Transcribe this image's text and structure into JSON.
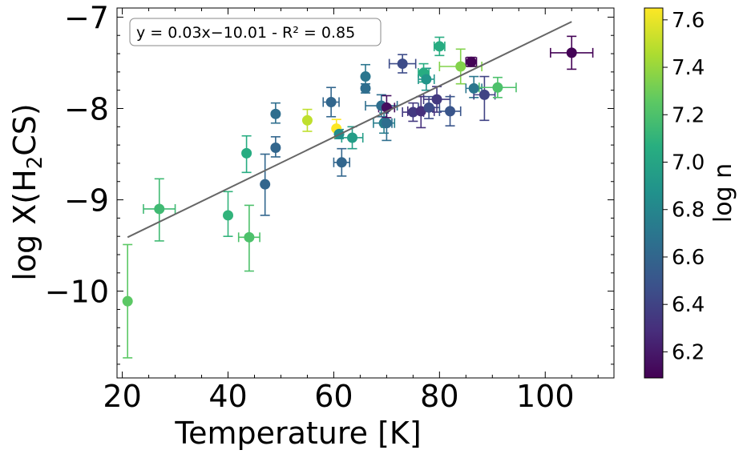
{
  "chart_data": {
    "type": "scatter",
    "xlabel": "Temperature [K]",
    "ylabel_main": "log X(H",
    "ylabel_sub": "2",
    "ylabel_tail": "CS)",
    "xlim": [
      19,
      113
    ],
    "ylim": [
      -10.95,
      -6.9
    ],
    "xticks": [
      20,
      40,
      60,
      80,
      100
    ],
    "xtick_labels": [
      "20",
      "40",
      "60",
      "80",
      "100"
    ],
    "yticks": [
      -7,
      -8,
      -9,
      -10
    ],
    "ytick_labels": [
      "−7",
      "−8",
      "−9",
      "−10"
    ],
    "fit": {
      "label": "y = 0.03x−10.01 - R² = 0.85",
      "x_range": [
        21,
        105
      ],
      "y_range": [
        -9.41,
        -7.05
      ],
      "color": "#666666"
    },
    "colorbar": {
      "label": "log n",
      "range": [
        6.09,
        7.65
      ],
      "ticks": [
        6.2,
        6.4,
        6.6,
        6.8,
        7.0,
        7.2,
        7.4,
        7.6
      ],
      "tick_labels": [
        "6.2",
        "6.4",
        "6.6",
        "6.8",
        "7.0",
        "7.2",
        "7.4",
        "7.6"
      ]
    },
    "points": [
      {
        "x": 21,
        "y": -10.11,
        "xerr": 0,
        "yerr_lo": 0.62,
        "yerr_hi": 0.62,
        "c": 7.25
      },
      {
        "x": 27,
        "y": -9.1,
        "xerr": 3,
        "yerr_lo": 0.35,
        "yerr_hi": 0.33,
        "c": 7.15
      },
      {
        "x": 40,
        "y": -9.17,
        "xerr": 0,
        "yerr_lo": 0.23,
        "yerr_hi": 0.26,
        "c": 7.1
      },
      {
        "x": 43.5,
        "y": -8.49,
        "xerr": 0,
        "yerr_lo": 0.21,
        "yerr_hi": 0.19,
        "c": 7.05
      },
      {
        "x": 44,
        "y": -9.41,
        "xerr": 2,
        "yerr_lo": 0.37,
        "yerr_hi": 0.35,
        "c": 7.2
      },
      {
        "x": 47,
        "y": -8.83,
        "xerr": 0,
        "yerr_lo": 0.34,
        "yerr_hi": 0.33,
        "c": 6.6
      },
      {
        "x": 49,
        "y": -8.06,
        "xerr": 0,
        "yerr_lo": 0.1,
        "yerr_hi": 0.12,
        "c": 6.65
      },
      {
        "x": 49,
        "y": -8.43,
        "xerr": 0,
        "yerr_lo": 0.1,
        "yerr_hi": 0.12,
        "c": 6.6
      },
      {
        "x": 55,
        "y": -8.13,
        "xerr": 0,
        "yerr_lo": 0.12,
        "yerr_hi": 0.12,
        "c": 7.5
      },
      {
        "x": 59.5,
        "y": -7.93,
        "xerr": 1.5,
        "yerr_lo": 0.16,
        "yerr_hi": 0.16,
        "c": 6.6
      },
      {
        "x": 60.5,
        "y": -8.22,
        "xerr": 0,
        "yerr_lo": 0.1,
        "yerr_hi": 0.1,
        "c": 7.65
      },
      {
        "x": 61,
        "y": -8.28,
        "xerr": 0.5,
        "yerr_lo": 0.05,
        "yerr_hi": 0.05,
        "c": 6.85
      },
      {
        "x": 61.5,
        "y": -8.59,
        "xerr": 1.5,
        "yerr_lo": 0.15,
        "yerr_hi": 0.15,
        "c": 6.6
      },
      {
        "x": 63.5,
        "y": -8.32,
        "xerr": 2,
        "yerr_lo": 0.12,
        "yerr_hi": 0.12,
        "c": 6.95
      },
      {
        "x": 66,
        "y": -7.65,
        "xerr": 0,
        "yerr_lo": 0.11,
        "yerr_hi": 0.13,
        "c": 6.7
      },
      {
        "x": 66,
        "y": -7.78,
        "xerr": 0,
        "yerr_lo": 0.05,
        "yerr_hi": 0.05,
        "c": 6.65
      },
      {
        "x": 69,
        "y": -7.97,
        "xerr": 3,
        "yerr_lo": 0.12,
        "yerr_hi": 0.12,
        "c": 6.65
      },
      {
        "x": 69.5,
        "y": -8.16,
        "xerr": 2,
        "yerr_lo": 0.11,
        "yerr_hi": 0.11,
        "c": 6.75
      },
      {
        "x": 70,
        "y": -8.16,
        "xerr": 1,
        "yerr_lo": 0.19,
        "yerr_hi": 0.19,
        "c": 6.65
      },
      {
        "x": 70,
        "y": -7.99,
        "xerr": 1.5,
        "yerr_lo": 0.11,
        "yerr_hi": 0.13,
        "c": 6.15
      },
      {
        "x": 73,
        "y": -7.51,
        "xerr": 2.5,
        "yerr_lo": 0.1,
        "yerr_hi": 0.1,
        "c": 6.45
      },
      {
        "x": 75,
        "y": -8.04,
        "xerr": 2,
        "yerr_lo": 0.1,
        "yerr_hi": 0.1,
        "c": 6.35
      },
      {
        "x": 76.5,
        "y": -8.03,
        "xerr": 2.5,
        "yerr_lo": 0.18,
        "yerr_hi": 0.16,
        "c": 6.3
      },
      {
        "x": 77,
        "y": -7.61,
        "xerr": 1,
        "yerr_lo": 0.1,
        "yerr_hi": 0.1,
        "c": 7.05
      },
      {
        "x": 77.5,
        "y": -7.68,
        "xerr": 1.5,
        "yerr_lo": 0.12,
        "yerr_hi": 0.12,
        "c": 6.9
      },
      {
        "x": 78,
        "y": -7.99,
        "xerr": 2,
        "yerr_lo": 0.12,
        "yerr_hi": 0.12,
        "c": 6.45
      },
      {
        "x": 79.5,
        "y": -7.9,
        "xerr": 2.5,
        "yerr_lo": 0.14,
        "yerr_hi": 0.14,
        "c": 6.35
      },
      {
        "x": 80,
        "y": -7.32,
        "xerr": 1,
        "yerr_lo": 0.1,
        "yerr_hi": 0.1,
        "c": 7.05
      },
      {
        "x": 82,
        "y": -8.03,
        "xerr": 2,
        "yerr_lo": 0.16,
        "yerr_hi": 0.16,
        "c": 6.5
      },
      {
        "x": 84,
        "y": -7.54,
        "xerr": 4,
        "yerr_lo": 0.19,
        "yerr_hi": 0.19,
        "c": 7.35
      },
      {
        "x": 86,
        "y": -7.49,
        "xerr": 1,
        "yerr_lo": 0.05,
        "yerr_hi": 0.05,
        "c": 6.1
      },
      {
        "x": 86.5,
        "y": -7.78,
        "xerr": 1.5,
        "yerr_lo": 0.1,
        "yerr_hi": 0.13,
        "c": 6.7
      },
      {
        "x": 88.5,
        "y": -7.85,
        "xerr": 2,
        "yerr_lo": 0.28,
        "yerr_hi": 0.2,
        "c": 6.4
      },
      {
        "x": 91,
        "y": -7.77,
        "xerr": 3.5,
        "yerr_lo": 0.11,
        "yerr_hi": 0.11,
        "c": 7.2
      },
      {
        "x": 105,
        "y": -7.39,
        "xerr": 4,
        "yerr_lo": 0.18,
        "yerr_hi": 0.18,
        "c": 6.1
      }
    ]
  }
}
